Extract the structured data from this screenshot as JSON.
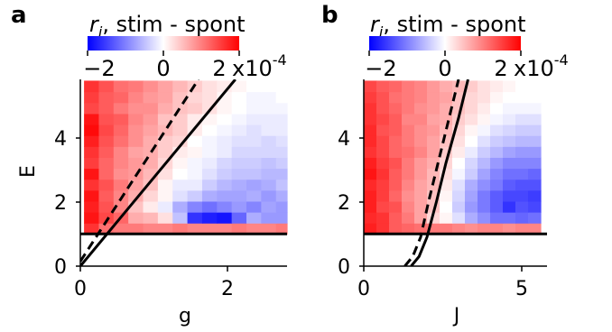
{
  "chart_data": [
    {
      "type": "heatmap",
      "panel_label": "a",
      "colorbar": {
        "title_var": "r",
        "title_sub": "i",
        "title_rest": ", stim - spont",
        "ticks": [
          "−2",
          "0",
          "2"
        ],
        "multiplier": "x10",
        "exponent": "-4",
        "range": [
          -2.5,
          2.5
        ],
        "colormap": "bwr",
        "colors": {
          "low": "#0000ff",
          "mid": "#ffffff",
          "high": "#ff0000"
        }
      },
      "xlabel": "g",
      "ylabel": "E",
      "xlim": [
        0,
        2.8
      ],
      "ylim": [
        0,
        5.8
      ],
      "xticks": [
        0,
        2
      ],
      "yticks": [
        0,
        2,
        4
      ],
      "grid": {
        "x0": 0.05,
        "dx": 0.2,
        "nx": 14,
        "y0": 1.0,
        "dy": 0.34,
        "ny": 14
      },
      "values": [
        [
          2.0,
          1.4,
          1.3,
          1.3,
          1.2,
          1.2,
          1.3,
          1.2,
          1.2,
          1.2,
          1.3,
          1.2,
          1.2,
          1.3
        ],
        [
          2.3,
          1.8,
          1.5,
          0.8,
          0.7,
          0.3,
          -0.6,
          -2.0,
          -2.2,
          -2.3,
          -1.5,
          -0.8,
          -1.0,
          -1.0
        ],
        [
          2.2,
          1.7,
          1.2,
          0.6,
          0.2,
          -0.2,
          -0.8,
          -1.2,
          -1.4,
          -1.2,
          -1.0,
          -1.2,
          -0.9,
          -1.0
        ],
        [
          2.3,
          1.6,
          1.2,
          0.8,
          0.4,
          0.1,
          -0.3,
          -0.5,
          -0.8,
          -0.9,
          -0.9,
          -0.8,
          -1.0,
          -0.8
        ],
        [
          2.0,
          1.7,
          1.3,
          0.9,
          0.6,
          0.1,
          -0.2,
          -0.2,
          -0.5,
          -0.7,
          -0.8,
          -0.9,
          -0.8,
          -0.6
        ],
        [
          2.3,
          1.5,
          1.1,
          1.0,
          0.7,
          0.3,
          0.0,
          -0.1,
          -0.3,
          -0.5,
          -0.6,
          -0.6,
          -0.7,
          -0.7
        ],
        [
          1.9,
          1.5,
          1.2,
          1.0,
          0.8,
          0.4,
          0.1,
          -0.1,
          -0.2,
          -0.4,
          -0.5,
          -0.5,
          -0.6,
          -0.5
        ],
        [
          2.0,
          1.6,
          1.2,
          0.9,
          0.8,
          0.5,
          0.2,
          0.1,
          -0.1,
          -0.2,
          -0.4,
          -0.4,
          -0.4,
          -0.4
        ],
        [
          2.2,
          1.7,
          1.4,
          1.1,
          0.8,
          0.5,
          0.4,
          0.0,
          -0.1,
          -0.2,
          -0.3,
          -0.3,
          -0.4,
          -0.3
        ],
        [
          2.4,
          1.8,
          1.5,
          1.1,
          0.9,
          0.7,
          0.5,
          0.2,
          0.0,
          -0.1,
          -0.2,
          -0.3,
          -0.2,
          -0.2
        ],
        [
          2.3,
          1.7,
          1.6,
          1.2,
          1.0,
          0.6,
          0.5,
          0.2,
          0.1,
          0.0,
          -0.1,
          -0.2,
          -0.2,
          -0.2
        ],
        [
          1.8,
          1.6,
          1.3,
          1.1,
          1.1,
          0.8,
          0.6,
          0.5,
          0.3,
          0.1,
          0.0,
          -0.1,
          -0.1,
          -0.1
        ],
        [
          1.9,
          1.6,
          1.5,
          1.2,
          1.0,
          0.9,
          0.6,
          0.4,
          0.3,
          0.1,
          0.0,
          -0.1,
          -0.1,
          0.0
        ],
        [
          2.0,
          1.7,
          1.4,
          1.3,
          1.1,
          0.9,
          0.7,
          0.5,
          0.3,
          0.2,
          0.1,
          0.0,
          0.0,
          0.0
        ]
      ],
      "lines": [
        {
          "style": "solid",
          "points": [
            [
              0.0,
              0.0
            ],
            [
              2.1,
              5.8
            ]
          ]
        },
        {
          "style": "dashed",
          "points": [
            [
              0.0,
              0.15
            ],
            [
              1.6,
              5.8
            ]
          ]
        },
        {
          "style": "solid",
          "points": [
            [
              0.0,
              1.0
            ],
            [
              2.8,
              1.0
            ]
          ]
        }
      ]
    },
    {
      "type": "heatmap",
      "panel_label": "b",
      "colorbar": {
        "title_var": "r",
        "title_sub": "i",
        "title_rest": ", stim - spont",
        "ticks": [
          "−2",
          "0",
          "2"
        ],
        "multiplier": "x10",
        "exponent": "-4",
        "range": [
          -2.5,
          2.5
        ],
        "colormap": "bwr",
        "colors": {
          "low": "#0000ff",
          "mid": "#ffffff",
          "high": "#ff0000"
        }
      },
      "xlabel": "J",
      "ylabel": "",
      "xlim": [
        0,
        5.8
      ],
      "ylim": [
        0,
        5.8
      ],
      "xticks": [
        0,
        5
      ],
      "yticks": [
        0,
        2,
        4
      ],
      "grid": {
        "x0": 0.0,
        "dx": 0.4,
        "nx": 14,
        "y0": 1.0,
        "dy": 0.34,
        "ny": 14
      },
      "values": [
        [
          2.2,
          2.0,
          1.6,
          1.5,
          1.4,
          1.3,
          1.3,
          1.2,
          1.1,
          1.2,
          1.2,
          1.1,
          1.2,
          1.2
        ],
        [
          2.1,
          2.0,
          1.6,
          1.3,
          0.9,
          0.4,
          0.1,
          -0.3,
          -0.8,
          -1.1,
          -1.4,
          -1.4,
          -1.5,
          -1.4
        ],
        [
          2.2,
          1.8,
          1.7,
          1.2,
          0.9,
          0.6,
          0.0,
          -0.5,
          -1.0,
          -1.3,
          -1.6,
          -2.0,
          -1.7,
          -1.8
        ],
        [
          2.2,
          1.9,
          1.5,
          1.1,
          0.9,
          0.6,
          0.1,
          -0.4,
          -0.9,
          -1.3,
          -1.6,
          -1.8,
          -1.8,
          -1.9
        ],
        [
          2.1,
          1.9,
          1.6,
          1.2,
          0.9,
          0.7,
          0.2,
          -0.3,
          -0.8,
          -1.1,
          -1.3,
          -1.6,
          -1.7,
          -1.7
        ],
        [
          2.3,
          2.0,
          1.6,
          1.3,
          1.0,
          0.7,
          0.3,
          -0.1,
          -0.5,
          -0.9,
          -1.2,
          -1.4,
          -1.4,
          -1.5
        ],
        [
          2.2,
          1.9,
          1.7,
          1.3,
          1.0,
          0.8,
          0.4,
          0.0,
          -0.4,
          -0.7,
          -1.0,
          -1.2,
          -1.2,
          -1.2
        ],
        [
          2.0,
          1.8,
          1.5,
          1.4,
          1.2,
          0.9,
          0.5,
          0.2,
          -0.2,
          -0.5,
          -0.7,
          -0.9,
          -1.0,
          -1.0
        ],
        [
          2.1,
          1.8,
          1.5,
          1.3,
          1.1,
          0.9,
          0.6,
          0.3,
          0.0,
          -0.3,
          -0.5,
          -0.6,
          -0.7,
          -0.7
        ],
        [
          2.1,
          1.7,
          1.6,
          1.3,
          1.1,
          1.0,
          0.7,
          0.4,
          0.1,
          -0.1,
          -0.3,
          -0.4,
          -0.5,
          -0.5
        ],
        [
          2.0,
          1.8,
          1.6,
          1.2,
          1.2,
          0.9,
          0.8,
          0.5,
          0.3,
          0.1,
          -0.1,
          -0.2,
          -0.3,
          -0.3
        ],
        [
          2.0,
          1.7,
          1.5,
          1.3,
          1.1,
          1.0,
          0.8,
          0.6,
          0.4,
          0.2,
          0.0,
          -0.1,
          -0.1,
          -0.1
        ],
        [
          1.9,
          1.7,
          1.4,
          1.3,
          1.2,
          1.0,
          0.9,
          0.6,
          0.4,
          0.3,
          0.1,
          0.0,
          0.0,
          0.0
        ],
        [
          1.8,
          1.6,
          1.5,
          1.3,
          1.2,
          1.0,
          0.8,
          0.7,
          0.5,
          0.3,
          0.2,
          0.1,
          0.0,
          0.0
        ]
      ],
      "lines": [
        {
          "style": "solid",
          "points": [
            [
              1.5,
              0.0
            ],
            [
              1.75,
              0.3
            ],
            [
              2.0,
              0.9
            ],
            [
              2.3,
              2.0
            ],
            [
              2.6,
              3.2
            ],
            [
              3.0,
              4.6
            ],
            [
              3.3,
              5.8
            ]
          ]
        },
        {
          "style": "dashed",
          "points": [
            [
              1.3,
              0.0
            ],
            [
              1.55,
              0.3
            ],
            [
              1.8,
              0.9
            ],
            [
              2.05,
              2.0
            ],
            [
              2.35,
              3.2
            ],
            [
              2.7,
              4.6
            ],
            [
              3.0,
              5.8
            ]
          ]
        },
        {
          "style": "solid",
          "points": [
            [
              0.0,
              1.0
            ],
            [
              5.8,
              1.0
            ]
          ]
        }
      ]
    }
  ]
}
